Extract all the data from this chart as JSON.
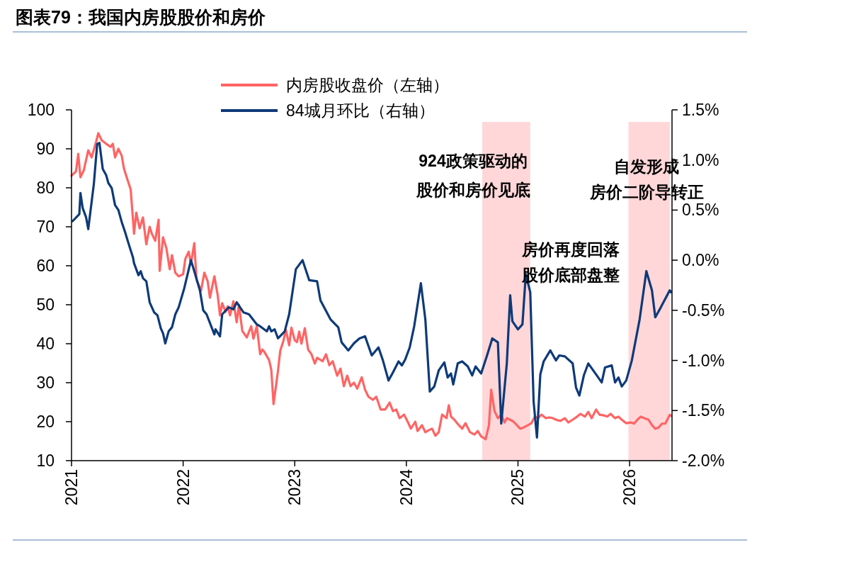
{
  "chart_data": {
    "type": "line",
    "title": "图表79：我国内房股股价和房价",
    "xlim": [
      2021,
      2026.38
    ],
    "xticks": [
      2021,
      2022,
      2023,
      2024,
      2025,
      2026
    ],
    "ylim": [
      10,
      100
    ],
    "yticks": [
      10,
      20,
      30,
      40,
      50,
      60,
      70,
      80,
      90,
      100
    ],
    "y2lim": [
      -2.0,
      1.5
    ],
    "y2ticks": [
      {
        "value": -2.0,
        "label": "-2.0%"
      },
      {
        "value": -1.5,
        "label": "-1.5%"
      },
      {
        "value": -1.0,
        "label": "-1.0%"
      },
      {
        "value": -0.5,
        "label": "-0.5%"
      },
      {
        "value": 0,
        "label": "0.0%"
      },
      {
        "value": 0.5,
        "label": "0.5%"
      },
      {
        "value": 1.0,
        "label": "1.0%"
      },
      {
        "value": 1.5,
        "label": "1.5%"
      }
    ],
    "legend": "top",
    "grid": false,
    "series": [
      {
        "name": "内房股收盘价（左轴）",
        "color": "#ff6464",
        "x": [
          2021.0,
          2021.04,
          2021.06,
          2021.08,
          2021.11,
          2021.15,
          2021.18,
          2021.22,
          2021.24,
          2021.27,
          2021.31,
          2021.35,
          2021.37,
          2021.39,
          2021.42,
          2021.45,
          2021.47,
          2021.51,
          2021.53,
          2021.56,
          2021.58,
          2021.61,
          2021.64,
          2021.67,
          2021.7,
          2021.72,
          2021.75,
          2021.78,
          2021.79,
          2021.82,
          2021.85,
          2021.88,
          2021.9,
          2021.93,
          2021.96,
          2022.0,
          2022.02,
          2022.05,
          2022.07,
          2022.1,
          2022.12,
          2022.16,
          2022.19,
          2022.22,
          2022.24,
          2022.28,
          2022.31,
          2022.33,
          2022.35,
          2022.38,
          2022.4,
          2022.42,
          2022.45,
          2022.48,
          2022.5,
          2022.53,
          2022.57,
          2022.61,
          2022.63,
          2022.66,
          2022.69,
          2022.71,
          2022.73,
          2022.77,
          2022.79,
          2022.81,
          2022.85,
          2022.87,
          2022.9,
          2022.92,
          2022.95,
          2022.97,
          2023.0,
          2023.02,
          2023.04,
          2023.06,
          2023.09,
          2023.12,
          2023.15,
          2023.18,
          2023.2,
          2023.25,
          2023.28,
          2023.31,
          2023.34,
          2023.38,
          2023.41,
          2023.44,
          2023.47,
          2023.5,
          2023.53,
          2023.56,
          2023.6,
          2023.63,
          2023.66,
          2023.7,
          2023.73,
          2023.77,
          2023.81,
          2023.85,
          2023.88,
          2023.91,
          2023.94,
          2023.98,
          2024.02,
          2024.04,
          2024.08,
          2024.1,
          2024.14,
          2024.17,
          2024.2,
          2024.23,
          2024.26,
          2024.29,
          2024.32,
          2024.36,
          2024.38,
          2024.4,
          2024.43,
          2024.47,
          2024.5,
          2024.53,
          2024.57,
          2024.61,
          2024.64,
          2024.67,
          2024.71,
          2024.74,
          2024.76,
          2024.79,
          2024.82,
          2024.85,
          2024.88,
          2024.9,
          2024.93,
          2024.96,
          2024.99,
          2025.02,
          2025.05,
          2025.09,
          2025.12,
          2025.15,
          2025.18,
          2025.21,
          2025.25,
          2025.28,
          2025.31,
          2025.35,
          2025.38,
          2025.42,
          2025.45,
          2025.49,
          2025.53,
          2025.56,
          2025.6,
          2025.63,
          2025.66,
          2025.7,
          2025.73,
          2025.77,
          2025.8,
          2025.83,
          2025.87,
          2025.9,
          2025.93,
          2025.97,
          2026.01,
          2026.04,
          2026.07,
          2026.1,
          2026.13,
          2026.17,
          2026.2,
          2026.23,
          2026.26,
          2026.29,
          2026.32,
          2026.36,
          2026.37
        ],
        "values": [
          83.1,
          84.2,
          88.7,
          82.7,
          84.5,
          89.6,
          87.8,
          91.8,
          94.0,
          92.2,
          91.3,
          90.5,
          91.3,
          87.8,
          90.0,
          88.2,
          84.9,
          81.3,
          79.6,
          68.2,
          73.6,
          69.6,
          72.4,
          65.5,
          70.0,
          68.2,
          66.4,
          71.8,
          58.7,
          67.3,
          64.5,
          59.1,
          62.7,
          58.2,
          57.3,
          57.8,
          61.8,
          63.6,
          60.5,
          65.8,
          56.4,
          53.6,
          58.2,
          56.0,
          51.8,
          57.3,
          52.4,
          47.3,
          50.4,
          48.2,
          49.6,
          47.3,
          50.9,
          45.5,
          50.0,
          43.3,
          41.6,
          44.5,
          41.3,
          44.5,
          37.3,
          38.5,
          37.8,
          35.8,
          33.3,
          24.5,
          33.1,
          38.2,
          40.9,
          43.6,
          39.6,
          44.1,
          40.9,
          40.4,
          43.1,
          40.0,
          44.0,
          38.5,
          37.3,
          34.9,
          36.4,
          35.5,
          37.3,
          34.5,
          35.5,
          31.8,
          33.6,
          29.1,
          31.8,
          29.1,
          30.0,
          28.5,
          31.4,
          28.2,
          26.4,
          25.6,
          26.4,
          23.1,
          23.1,
          24.9,
          22.7,
          23.1,
          20.9,
          21.8,
          19.5,
          18.2,
          20.0,
          17.6,
          19.1,
          17.3,
          17.8,
          18.2,
          16.4,
          17.3,
          21.8,
          20.9,
          24.2,
          21.3,
          20.5,
          19.1,
          18.2,
          19.6,
          17.3,
          16.7,
          17.6,
          16.2,
          15.5,
          19.1,
          28.2,
          22.7,
          20.9,
          21.8,
          19.8,
          20.9,
          20.5,
          20.0,
          19.1,
          18.2,
          18.5,
          19.1,
          19.6,
          21.3,
          20.9,
          21.8,
          20.9,
          21.1,
          20.9,
          20.4,
          20.2,
          20.9,
          19.8,
          20.5,
          21.3,
          22.0,
          21.3,
          22.5,
          20.9,
          23.1,
          21.8,
          21.6,
          21.3,
          22.0,
          20.9,
          21.3,
          20.5,
          19.6,
          19.8,
          19.5,
          20.5,
          21.3,
          20.9,
          20.5,
          19.1,
          18.2,
          18.5,
          19.5,
          19.5,
          21.8,
          21.5
        ]
      },
      {
        "name": "84城月环比（右轴）",
        "color": "#0e3a78",
        "axis": "y2",
        "x": [
          2021.01,
          2021.07,
          2021.08,
          2021.1,
          2021.13,
          2021.15,
          2021.2,
          2021.23,
          2021.25,
          2021.28,
          2021.31,
          2021.33,
          2021.36,
          2021.39,
          2021.42,
          2021.45,
          2021.48,
          2021.51,
          2021.55,
          2021.56,
          2021.6,
          2021.62,
          2021.64,
          2021.67,
          2021.7,
          2021.74,
          2021.77,
          2021.8,
          2021.82,
          2021.84,
          2021.87,
          2021.9,
          2021.93,
          2021.96,
          2022.01,
          2022.07,
          2022.1,
          2022.15,
          2022.18,
          2022.21,
          2022.28,
          2022.29,
          2022.33,
          2022.35,
          2022.41,
          2022.45,
          2022.48,
          2022.54,
          2022.59,
          2022.66,
          2022.69,
          2022.75,
          2022.77,
          2022.79,
          2022.82,
          2022.85,
          2022.91,
          2022.95,
          2023.01,
          2023.07,
          2023.13,
          2023.2,
          2023.23,
          2023.32,
          2023.39,
          2023.42,
          2023.48,
          2023.53,
          2023.58,
          2023.63,
          2023.69,
          2023.75,
          2023.79,
          2023.84,
          2023.88,
          2023.93,
          2023.96,
          2023.99,
          2024.03,
          2024.07,
          2024.13,
          2024.17,
          2024.21,
          2024.25,
          2024.29,
          2024.34,
          2024.37,
          2024.4,
          2024.42,
          2024.46,
          2024.5,
          2024.55,
          2024.59,
          2024.62,
          2024.67,
          2024.72,
          2024.77,
          2024.82,
          2024.85,
          2024.9,
          2024.93,
          2024.95,
          2025.0,
          2025.04,
          2025.07,
          2025.11,
          2025.14,
          2025.17,
          2025.2,
          2025.23,
          2025.29,
          2025.34,
          2025.37,
          2025.42,
          2025.49,
          2025.52,
          2025.55,
          2025.59,
          2025.63,
          2025.7,
          2025.75,
          2025.78,
          2025.84,
          2025.87,
          2025.9,
          2025.93,
          2025.97,
          2026.02,
          2026.09,
          2026.15,
          2026.2,
          2026.23,
          2026.28,
          2026.36,
          2026.37
        ],
        "values": [
          0.39,
          0.46,
          0.67,
          0.52,
          0.43,
          0.31,
          0.76,
          1.16,
          1.17,
          0.91,
          0.85,
          0.77,
          0.72,
          0.55,
          0.5,
          0.38,
          0.28,
          0.17,
          0.03,
          -0.03,
          -0.15,
          -0.11,
          -0.18,
          -0.21,
          -0.42,
          -0.52,
          -0.55,
          -0.68,
          -0.73,
          -0.83,
          -0.71,
          -0.67,
          -0.54,
          -0.47,
          -0.28,
          0.0,
          -0.11,
          -0.3,
          -0.5,
          -0.54,
          -0.74,
          -0.69,
          -0.76,
          -0.54,
          -0.47,
          -0.49,
          -0.42,
          -0.52,
          -0.54,
          -0.64,
          -0.66,
          -0.71,
          -0.66,
          -0.71,
          -0.69,
          -0.78,
          -0.71,
          -0.54,
          -0.09,
          0.0,
          -0.2,
          -0.21,
          -0.4,
          -0.59,
          -0.67,
          -0.82,
          -0.9,
          -0.83,
          -0.78,
          -0.76,
          -0.95,
          -0.87,
          -1.0,
          -1.2,
          -1.12,
          -1.01,
          -1.05,
          -0.99,
          -0.87,
          -0.66,
          -0.23,
          -0.59,
          -1.31,
          -1.26,
          -1.1,
          -1.02,
          -1.17,
          -1.13,
          -1.24,
          -1.03,
          -1.01,
          -1.06,
          -1.15,
          -1.06,
          -1.13,
          -0.96,
          -0.78,
          -0.82,
          -1.63,
          -1.03,
          -0.35,
          -0.61,
          -0.69,
          -0.64,
          -0.14,
          -0.32,
          -1.41,
          -1.77,
          -1.14,
          -1.01,
          -0.9,
          -1.0,
          -0.95,
          -0.96,
          -1.03,
          -1.27,
          -1.35,
          -1.15,
          -1.03,
          -1.14,
          -1.22,
          -1.07,
          -1.05,
          -1.22,
          -1.17,
          -1.26,
          -1.2,
          -1.0,
          -0.59,
          -0.11,
          -0.3,
          -0.57,
          -0.47,
          -0.3,
          -0.32
        ]
      }
    ],
    "bands": [
      {
        "axis": "x",
        "from": 2024.68,
        "to": 2025.11,
        "color": "#ffd7d9"
      },
      {
        "axis": "x",
        "from": 2025.99,
        "to": 2026.36,
        "color": "#ffd7d9"
      }
    ],
    "annotations": [
      "924政策驱动的",
      "股价和房价见底",
      "房价再度回落",
      "股价底部盘整",
      "自发形成",
      "房价二阶导转正"
    ]
  }
}
